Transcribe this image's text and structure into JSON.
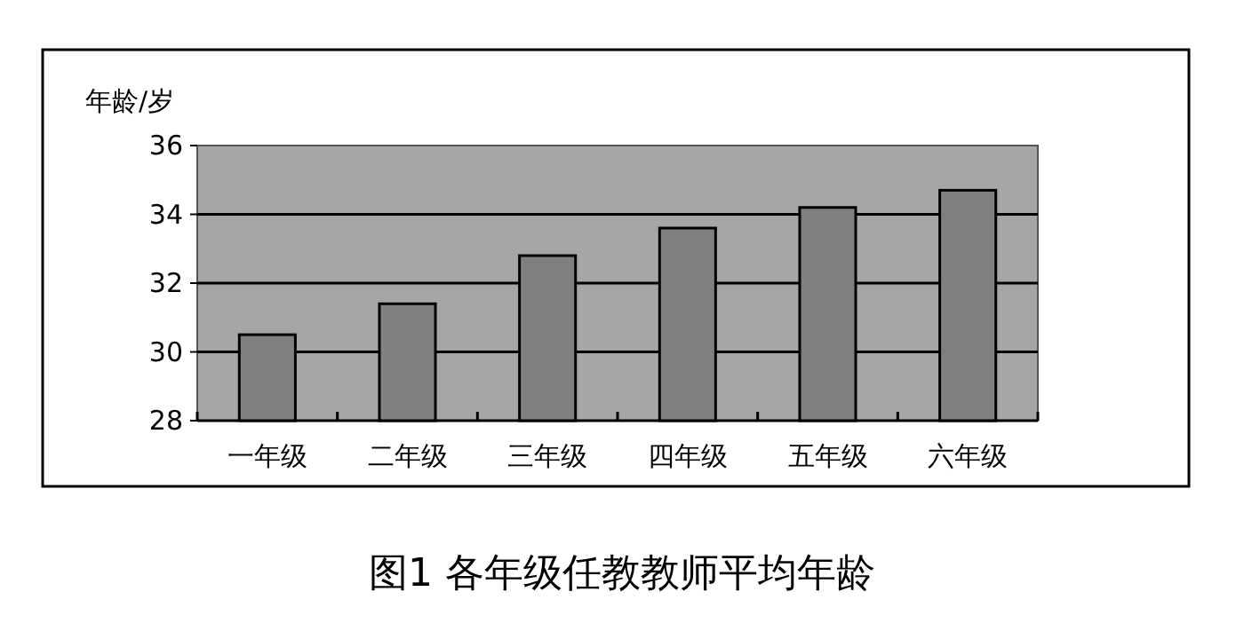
{
  "chart_data": {
    "type": "bar",
    "title": "图1  各年级任教教师平均年龄",
    "ylabel": "年龄/岁",
    "categories": [
      "一年级",
      "二年级",
      "三年级",
      "四年级",
      "五年级",
      "六年级"
    ],
    "values": [
      30.5,
      31.4,
      32.8,
      33.6,
      34.2,
      34.7
    ],
    "color": "#808080",
    "ylim": [
      28,
      36
    ],
    "yticks": [
      28,
      30,
      32,
      34,
      36
    ],
    "grid": "y"
  }
}
